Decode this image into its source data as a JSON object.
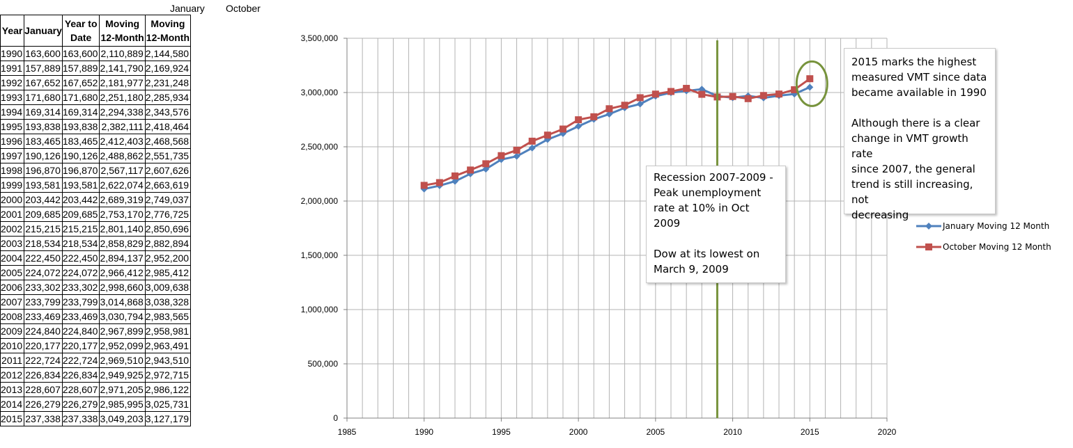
{
  "table": {
    "top_labels": {
      "january": "January",
      "october": "October"
    },
    "headers": [
      "Year",
      "January",
      "Year to Date",
      "Moving 12-Month",
      "Moving 12-Month"
    ],
    "rows": [
      [
        "1990",
        "163,600",
        "163,600",
        "2,110,889",
        "2,144,580"
      ],
      [
        "1991",
        "157,889",
        "157,889",
        "2,141,790",
        "2,169,924"
      ],
      [
        "1992",
        "167,652",
        "167,652",
        "2,181,977",
        "2,231,248"
      ],
      [
        "1993",
        "171,680",
        "171,680",
        "2,251,180",
        "2,285,934"
      ],
      [
        "1994",
        "169,314",
        "169,314",
        "2,294,338",
        "2,343,576"
      ],
      [
        "1995",
        "193,838",
        "193,838",
        "2,382,111",
        "2,418,464"
      ],
      [
        "1996",
        "183,465",
        "183,465",
        "2,412,403",
        "2,468,568"
      ],
      [
        "1997",
        "190,126",
        "190,126",
        "2,488,862",
        "2,551,735"
      ],
      [
        "1998",
        "196,870",
        "196,870",
        "2,567,117",
        "2,607,626"
      ],
      [
        "1999",
        "193,581",
        "193,581",
        "2,622,074",
        "2,663,619"
      ],
      [
        "2000",
        "203,442",
        "203,442",
        "2,689,319",
        "2,749,037"
      ],
      [
        "2001",
        "209,685",
        "209,685",
        "2,753,170",
        "2,776,725"
      ],
      [
        "2002",
        "215,215",
        "215,215",
        "2,801,140",
        "2,850,696"
      ],
      [
        "2003",
        "218,534",
        "218,534",
        "2,858,829",
        "2,882,894"
      ],
      [
        "2004",
        "222,450",
        "222,450",
        "2,894,137",
        "2,952,200"
      ],
      [
        "2005",
        "224,072",
        "224,072",
        "2,966,412",
        "2,985,412"
      ],
      [
        "2006",
        "233,302",
        "233,302",
        "2,998,660",
        "3,009,638"
      ],
      [
        "2007",
        "233,799",
        "233,799",
        "3,014,868",
        "3,038,328"
      ],
      [
        "2008",
        "233,469",
        "233,469",
        "3,030,794",
        "2,983,565"
      ],
      [
        "2009",
        "224,840",
        "224,840",
        "2,967,899",
        "2,958,981"
      ],
      [
        "2010",
        "220,177",
        "220,177",
        "2,952,099",
        "2,963,491"
      ],
      [
        "2011",
        "222,724",
        "222,724",
        "2,969,510",
        "2,943,510"
      ],
      [
        "2012",
        "226,834",
        "226,834",
        "2,949,925",
        "2,972,715"
      ],
      [
        "2013",
        "228,607",
        "228,607",
        "2,971,205",
        "2,986,122"
      ],
      [
        "2014",
        "226,279",
        "226,279",
        "2,985,995",
        "3,025,731"
      ],
      [
        "2015",
        "237,338",
        "237,338",
        "3,049,203",
        "3,127,179"
      ]
    ]
  },
  "chart_data": {
    "type": "line",
    "x": [
      1990,
      1991,
      1992,
      1993,
      1994,
      1995,
      1996,
      1997,
      1998,
      1999,
      2000,
      2001,
      2002,
      2003,
      2004,
      2005,
      2006,
      2007,
      2008,
      2009,
      2010,
      2011,
      2012,
      2013,
      2014,
      2015
    ],
    "series": [
      {
        "name": "January Moving 12 Month",
        "color": "#4f81bd",
        "marker": "diamond",
        "values": [
          2110889,
          2141790,
          2181977,
          2251180,
          2294338,
          2382111,
          2412403,
          2488862,
          2567117,
          2622074,
          2689319,
          2753170,
          2801140,
          2858829,
          2894137,
          2966412,
          2998660,
          3014868,
          3030794,
          2967899,
          2952099,
          2969510,
          2949925,
          2971205,
          2985995,
          3049203
        ]
      },
      {
        "name": "October Moving 12 Month",
        "color": "#c0504d",
        "marker": "square",
        "values": [
          2144580,
          2169924,
          2231248,
          2285934,
          2343576,
          2418464,
          2468568,
          2551735,
          2607626,
          2663619,
          2749037,
          2776725,
          2850696,
          2882894,
          2952200,
          2985412,
          3009638,
          3038328,
          2983565,
          2958981,
          2963491,
          2943510,
          2972715,
          2986122,
          3025731,
          3127179
        ]
      }
    ],
    "xlim": [
      1985,
      2020
    ],
    "ylim": [
      0,
      3500000
    ],
    "x_ticks": [
      "1985",
      "1990",
      "1995",
      "2000",
      "2005",
      "2010",
      "2015",
      "2020"
    ],
    "y_ticks": [
      "0",
      "500,000",
      "1,000,000",
      "1,500,000",
      "2,000,000",
      "2,500,000",
      "3,000,000",
      "3,500,000"
    ],
    "grid": true,
    "legend_position": "right",
    "vertical_marker_x": 2009,
    "vertical_marker_color": "#77933c",
    "highlight_circle_x": 2015,
    "highlight_circle_y": 3100000,
    "highlight_color": "#77933c",
    "annotations": {
      "recession": [
        "Recession 2007-2009 -\nPeak unemployment\nrate at 10% in Oct 2009",
        "Dow at its lowest on\nMarch 9, 2009"
      ],
      "trend": [
        "2015 marks the highest\nmeasured VMT since data\nbecame available in 1990",
        "Although there is a clear\nchange in VMT growth rate\nsince 2007, the general\ntrend is still increasing, not\ndecreasing"
      ]
    }
  }
}
